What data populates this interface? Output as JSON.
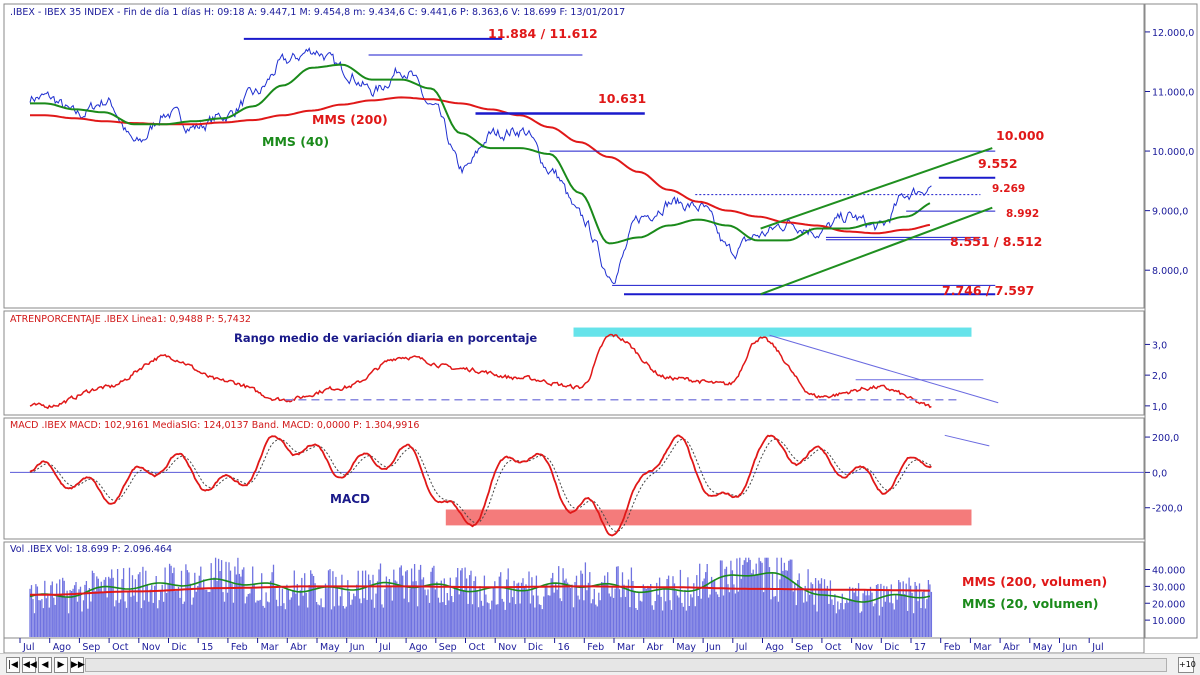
{
  "panels": {
    "price": {
      "header": ".IBEX - IBEX 35 INDEX - Fin de día 1 días H: 09:18 A: 9.447,1 M: 9.454,8 m: 9.434,6 C: 9.441,6 P: 8.363,6 V: 18.699 F: 13/01/2017",
      "yticks": [
        "12.000,0",
        "11.000,0",
        "10.000,0",
        "9.000,0",
        "8.000,0"
      ],
      "annotations": {
        "top": "11.884  / 11.612",
        "mid": "10.631",
        "ten": "10.000",
        "a9552": "9.552",
        "a9269": "9.269",
        "a8992": "8.992",
        "a8551": "8.551 / 8.512",
        "a7746": "7.746 / 7.597",
        "mms200": "MMS (200)",
        "mms40": "MMS (40)"
      }
    },
    "atr": {
      "header": "ATRENPORCENTAJE .IBEX Linea1: 0,9488 P: 5,7432",
      "yticks": [
        "3,0",
        "2,0",
        "1,0"
      ],
      "annotation": "Rango medio de variación diaria en porcentaje"
    },
    "macd": {
      "header": "MACD .IBEX MACD: 102,9161 MediaSIG: 124,0137 Band. MACD: 0,0000 P: 1.304,9916",
      "yticks": [
        "200,0",
        "0,0",
        "-200,0"
      ],
      "annotation": "MACD"
    },
    "volume": {
      "header": "Vol .IBEX Vol: 18.699 P: 2.096.464",
      "yticks": [
        "40.000",
        "30.000",
        "20.000",
        "10.000"
      ],
      "legend200": "MMS (200, volumen)",
      "legend20": "MMS (20, volumen)"
    }
  },
  "xaxis": {
    "labels": [
      "Jul",
      "Ago",
      "Sep",
      "Oct",
      "Nov",
      "Dic",
      "15",
      "Feb",
      "Mar",
      "Abr",
      "May",
      "Jun",
      "Jul",
      "Ago",
      "Sep",
      "Oct",
      "Nov",
      "Dic",
      "16",
      "Feb",
      "Mar",
      "Abr",
      "May",
      "Jun",
      "Jul",
      "Ago",
      "Sep",
      "Oct",
      "Nov",
      "Dic",
      "17",
      "Feb",
      "Mar",
      "Abr",
      "May",
      "Jun",
      "Jul"
    ]
  },
  "navbar": {
    "zoom": "+10"
  },
  "colors": {
    "price": "#1f2fd0",
    "mms200": "#e01818",
    "mms40": "#1a8a1a",
    "trend": "#1f8f1f",
    "annot": "#e01818",
    "level": "#1a1acc",
    "cyan": "#66e3ea",
    "salmon": "#f47b7b"
  },
  "chart_data": [
    {
      "type": "line",
      "title": ".IBEX - IBEX 35 INDEX",
      "x": [
        "2014-07",
        "2014-08",
        "2014-09",
        "2014-10",
        "2014-11",
        "2014-12",
        "2015-01",
        "2015-02",
        "2015-03",
        "2015-04",
        "2015-05",
        "2015-06",
        "2015-07",
        "2015-08",
        "2015-09",
        "2015-10",
        "2015-11",
        "2015-12",
        "2016-01",
        "2016-02",
        "2016-03",
        "2016-04",
        "2016-05",
        "2016-06",
        "2016-07",
        "2016-08",
        "2016-09",
        "2016-10",
        "2016-11",
        "2016-12",
        "2017-01"
      ],
      "series": [
        {
          "name": "",
          "values": [
            10900,
            10600,
            10850,
            10100,
            10650,
            10400,
            10600,
            10950,
            11500,
            11700,
            11350,
            11000,
            11400,
            10700,
            9650,
            10300,
            10350,
            9650,
            8850,
            7900,
            8900,
            9150,
            9050,
            8300,
            8600,
            8800,
            8650,
            8900,
            8700,
            9300,
            9441.6
          ]
        },
        {
          "name": "MMS (200)",
          "values": [
            10600,
            10550,
            10500,
            10470,
            10450,
            10450,
            10480,
            10520,
            10600,
            10680,
            10780,
            10850,
            10900,
            10870,
            10800,
            10700,
            10600,
            10400,
            10150,
            9900,
            9650,
            9350,
            9150,
            9000,
            8900,
            8800,
            8750,
            8650,
            8620,
            8680,
            8770
          ]
        },
        {
          "name": "MMS (40)",
          "values": [
            10800,
            10700,
            10650,
            10450,
            10450,
            10500,
            10550,
            10750,
            11100,
            11400,
            11450,
            11200,
            11200,
            11050,
            10300,
            10050,
            10050,
            9950,
            9300,
            8450,
            8550,
            8750,
            8850,
            8750,
            8500,
            8500,
            8700,
            8700,
            8800,
            8900,
            9150
          ]
        }
      ],
      "ylim": [
        7500,
        12200
      ],
      "levels": [
        11884,
        11612,
        10631,
        10000,
        9552,
        9269,
        8992,
        8551,
        8512,
        7746,
        7597
      ]
    },
    {
      "type": "line",
      "title": "ATRENPORCENTAJE",
      "x": [
        "2014-07",
        "2014-09",
        "2014-11",
        "2015-01",
        "2015-03",
        "2015-05",
        "2015-07",
        "2015-09",
        "2015-11",
        "2016-01",
        "2016-02",
        "2016-04",
        "2016-06",
        "2016-07",
        "2016-09",
        "2016-11",
        "2017-01"
      ],
      "series": [
        {
          "name": "",
          "values": [
            1.0,
            1.6,
            2.6,
            1.8,
            1.2,
            1.6,
            2.6,
            2.2,
            1.9,
            1.6,
            3.3,
            1.9,
            1.7,
            3.2,
            1.3,
            1.6,
            0.95
          ]
        }
      ],
      "ylim": [
        0.8,
        3.6
      ]
    },
    {
      "type": "line",
      "title": "MACD",
      "x": [
        "2014-07",
        "2014-09",
        "2014-11",
        "2015-01",
        "2015-03",
        "2015-05",
        "2015-07",
        "2015-09",
        "2015-11",
        "2016-01",
        "2016-02",
        "2016-04",
        "2016-06",
        "2016-07",
        "2016-09",
        "2016-11",
        "2017-01"
      ],
      "series": [
        {
          "name": "",
          "values": [
            0,
            -120,
            60,
            -80,
            170,
            30,
            100,
            -270,
            120,
            -200,
            -300,
            160,
            -190,
            150,
            80,
            -60,
            103
          ]
        }
      ],
      "ylim": [
        -360,
        240
      ]
    },
    {
      "type": "bar",
      "title": "Vol",
      "x": [
        "2014-07",
        "2014-10",
        "2015-01",
        "2015-04",
        "2015-07",
        "2015-10",
        "2016-01",
        "2016-04",
        "2016-07",
        "2016-10",
        "2017-01"
      ],
      "series": [
        {
          "name": "MMS (200, volumen)",
          "values": [
            25000,
            27000,
            29000,
            30000,
            30000,
            29500,
            30000,
            29500,
            28500,
            28000,
            27500
          ]
        },
        {
          "name": "MMS (20, volumen)",
          "values": [
            24000,
            30000,
            33000,
            28000,
            31000,
            28000,
            31000,
            27000,
            38000,
            22000,
            25000
          ]
        }
      ],
      "ylim": [
        0,
        48000
      ]
    }
  ]
}
